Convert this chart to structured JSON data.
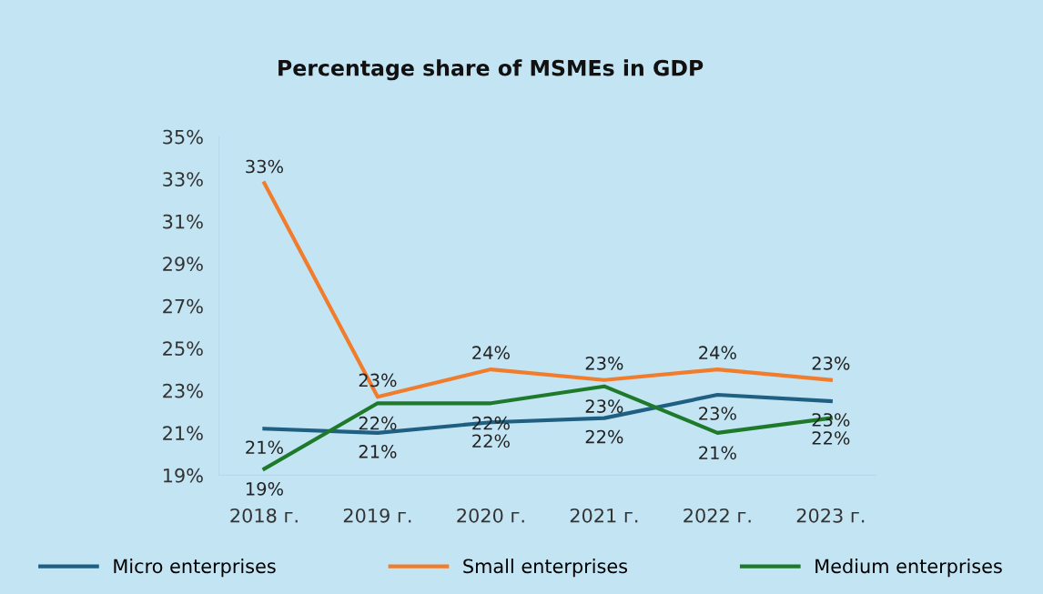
{
  "chart_data": {
    "type": "line",
    "title": "Percentage share of MSMEs in GDP",
    "categories": [
      "2018 г.",
      "2019 г.",
      "2020 г.",
      "2021 г.",
      "2022 г.",
      "2023 г."
    ],
    "series": [
      {
        "name": "Micro enterprises",
        "color": "#1f5f82",
        "values": [
          21.2,
          21.0,
          21.5,
          21.7,
          22.8,
          22.5
        ],
        "value_labels": [
          "21%",
          "21%",
          "22%",
          "22%",
          "23%",
          "23%"
        ]
      },
      {
        "name": "Small enterprises",
        "color": "#f07c2c",
        "values": [
          32.8,
          22.7,
          24.0,
          23.5,
          24.0,
          23.5
        ],
        "value_labels": [
          "33%",
          "23%",
          "24%",
          "23%",
          "24%",
          "23%"
        ]
      },
      {
        "name": "Medium enterprises",
        "color": "#1e7a2a",
        "values": [
          19.3,
          22.4,
          22.4,
          23.2,
          21.0,
          21.7
        ],
        "value_labels": [
          "19%",
          "22%",
          "22%",
          "23%",
          "21%",
          "22%"
        ]
      }
    ],
    "ylim": [
      19,
      35
    ],
    "yticks": [
      {
        "value": 19,
        "label": "19%"
      },
      {
        "value": 21,
        "label": "21%"
      },
      {
        "value": 23,
        "label": "23%"
      },
      {
        "value": 25,
        "label": "25%"
      },
      {
        "value": 27,
        "label": "27%"
      },
      {
        "value": 29,
        "label": "29%"
      },
      {
        "value": 31,
        "label": "31%"
      },
      {
        "value": 33,
        "label": "33%"
      },
      {
        "value": 35,
        "label": "35%"
      }
    ],
    "grid": false,
    "legend": "bottom",
    "marker": "none",
    "line_style": "solid"
  }
}
